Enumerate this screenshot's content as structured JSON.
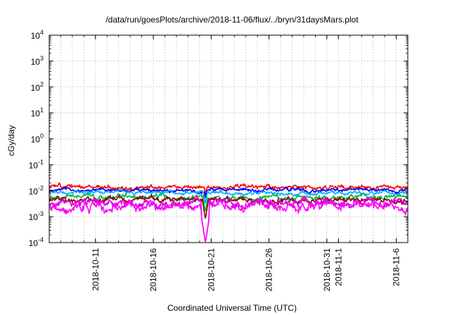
{
  "chart_data": {
    "type": "line",
    "title": "/data/run/goesPlots/archive/2018-11-06/flux/../bryn/31daysMars.plot",
    "xlabel": "Coordinated Universal Time (UTC)",
    "ylabel": "cGy/day",
    "yscale": "log",
    "ylim": [
      0.0001,
      10000
    ],
    "y_ticks": [
      {
        "base": "10",
        "exp": "-4"
      },
      {
        "base": "10",
        "exp": "-3"
      },
      {
        "base": "10",
        "exp": "-2"
      },
      {
        "base": "10",
        "exp": "-1"
      },
      {
        "base": "10",
        "exp": "0"
      },
      {
        "base": "10",
        "exp": "1"
      },
      {
        "base": "10",
        "exp": "2"
      },
      {
        "base": "10",
        "exp": "3"
      },
      {
        "base": "10",
        "exp": "4"
      }
    ],
    "xlim": [
      "2018-10-07",
      "2018-11-07"
    ],
    "x_ticks": [
      {
        "date": "2018-10-11",
        "label": "2018-10-11"
      },
      {
        "date": "2018-10-16",
        "label": "2018-10-16"
      },
      {
        "date": "2018-10-21",
        "label": "2018-10-21"
      },
      {
        "date": "2018-10-26",
        "label": "2018-10-26"
      },
      {
        "date": "2018-10-31",
        "label": "2018-10-31"
      },
      {
        "date": "2018-11-01",
        "label": "2018-11-1"
      },
      {
        "date": "2018-11-06",
        "label": "2018-11-6"
      }
    ],
    "grid": true,
    "legend": "none",
    "series": [
      {
        "color": "#ff0000",
        "base": 0.0135,
        "noise": 0.07,
        "seed": 11,
        "dips": [
          {
            "date": "2018-10-20T12:00",
            "value": 0.007
          }
        ]
      },
      {
        "color": "#0000ff",
        "base": 0.0105,
        "noise": 0.06,
        "seed": 23,
        "dips": [
          {
            "date": "2018-10-20T12:00",
            "value": 0.005
          }
        ]
      },
      {
        "color": "#00aaff",
        "base": 0.0085,
        "noise": 0.06,
        "seed": 37,
        "dips": [
          {
            "date": "2018-10-20T12:00",
            "value": 0.003
          }
        ]
      },
      {
        "color": "#00bb44",
        "base": 0.0055,
        "noise": 0.08,
        "seed": 41,
        "dips": [
          {
            "date": "2018-10-20T12:00",
            "value": 0.0015
          }
        ]
      },
      {
        "color": "#8b0000",
        "base": 0.0045,
        "noise": 0.09,
        "seed": 53,
        "dips": [
          {
            "date": "2018-10-20T12:00",
            "value": 0.0008
          }
        ]
      },
      {
        "color": "#dd00dd",
        "base": 0.0032,
        "noise": 0.14,
        "seed": 67,
        "dips": [
          {
            "date": "2018-10-20T12:00",
            "value": 0.0001
          }
        ]
      },
      {
        "color": "#ff00ff",
        "base": 0.0025,
        "noise": 0.16,
        "seed": 79,
        "dips": [
          {
            "date": "2018-10-20T12:00",
            "value": 0.0001
          }
        ]
      }
    ]
  }
}
